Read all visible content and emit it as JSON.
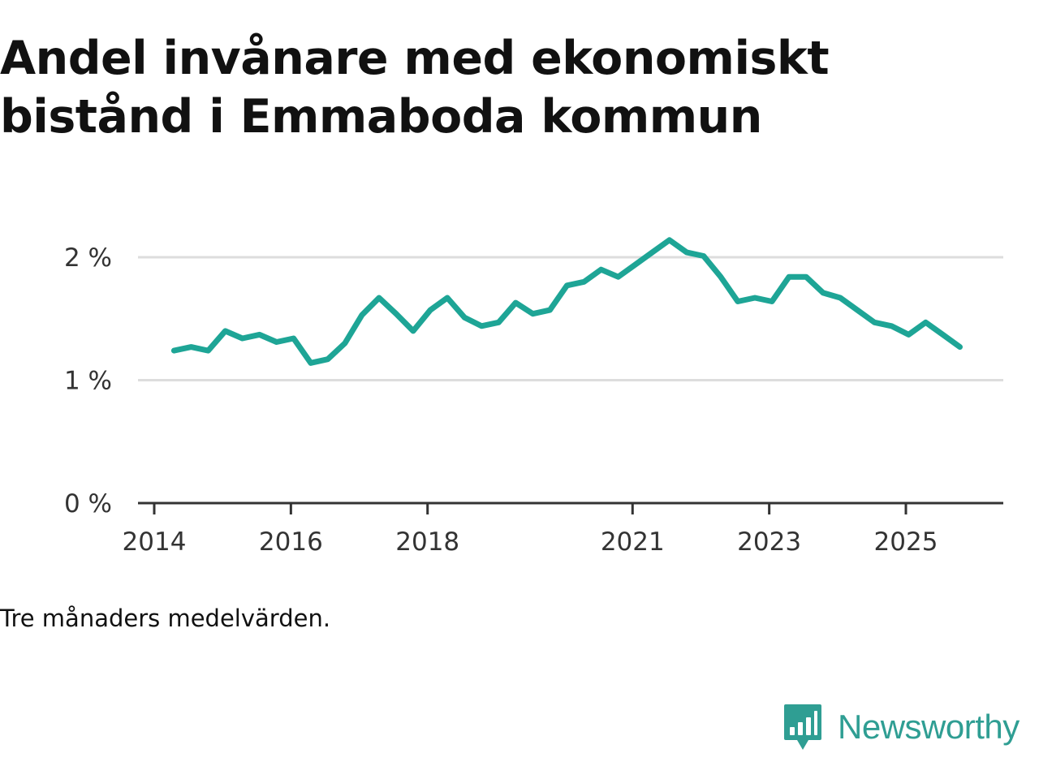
{
  "title_lines": [
    "Andel invånare med ekonomiskt",
    "bistånd i Emmaboda kommun"
  ],
  "note": "Tre månaders medelvärden.",
  "brand": {
    "name": "Newsworthy",
    "logo_icon": "newsworthy-bar-chart-icon"
  },
  "colors": {
    "line": "#1ea596",
    "grid": "#dddddd",
    "axis": "#333333",
    "brand": "#2f9e93"
  },
  "chart_data": {
    "type": "line",
    "title": "Andel invånare med ekonomiskt bistånd i Emmaboda kommun",
    "xlabel": "",
    "ylabel": "",
    "y_unit": "%",
    "ylim": [
      0,
      2.2
    ],
    "xlim": [
      2014.0,
      2026.5
    ],
    "y_ticks": [
      {
        "value": 0,
        "label": "0 %"
      },
      {
        "value": 1,
        "label": "1 %"
      },
      {
        "value": 2,
        "label": "2 %"
      }
    ],
    "x_ticks": [
      {
        "value": 2014,
        "label": "2014"
      },
      {
        "value": 2016,
        "label": "2016"
      },
      {
        "value": 2018,
        "label": "2018"
      },
      {
        "value": 2021,
        "label": "2021"
      },
      {
        "value": 2023,
        "label": "2023"
      },
      {
        "value": 2025,
        "label": "2025"
      }
    ],
    "grid": true,
    "series": [
      {
        "name": "Andel invånare med ekonomiskt bistånd",
        "x": [
          2014.29,
          2014.54,
          2014.79,
          2015.04,
          2015.29,
          2015.54,
          2015.79,
          2016.04,
          2016.29,
          2016.54,
          2016.79,
          2017.04,
          2017.29,
          2017.54,
          2017.79,
          2018.04,
          2018.29,
          2018.54,
          2018.79,
          2019.04,
          2019.29,
          2019.54,
          2019.79,
          2020.04,
          2020.29,
          2020.54,
          2020.79,
          2021.04,
          2021.29,
          2021.54,
          2021.79,
          2022.04,
          2022.29,
          2022.54,
          2022.79,
          2023.04,
          2023.29,
          2023.54,
          2023.79,
          2024.04,
          2024.29,
          2024.54,
          2024.79,
          2025.04,
          2025.29,
          2025.54,
          2025.79
        ],
        "values": [
          1.24,
          1.27,
          1.24,
          1.4,
          1.34,
          1.37,
          1.31,
          1.34,
          1.14,
          1.17,
          1.3,
          1.53,
          1.67,
          1.54,
          1.4,
          1.57,
          1.67,
          1.51,
          1.44,
          1.47,
          1.63,
          1.54,
          1.57,
          1.77,
          1.8,
          1.9,
          1.84,
          1.94,
          2.04,
          2.14,
          2.04,
          2.01,
          1.84,
          1.64,
          1.67,
          1.64,
          1.84,
          1.84,
          1.71,
          1.67,
          1.57,
          1.47,
          1.44,
          1.37,
          1.47,
          1.37,
          1.27
        ]
      }
    ]
  }
}
